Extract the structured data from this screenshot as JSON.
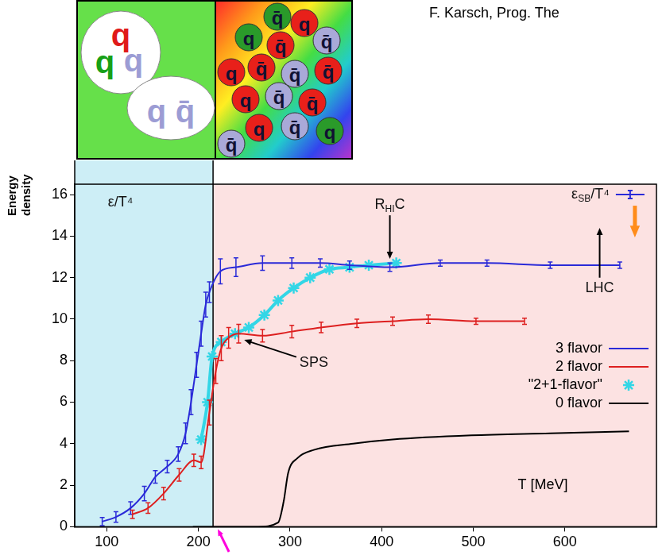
{
  "source": "F. Karsch, Prog. The",
  "inset": {
    "hadrons": [
      [
        {
          "label": "q",
          "color": "#e01a1a"
        },
        {
          "label": "q",
          "color": "#17a017"
        },
        {
          "label": "q",
          "color": "#9c9cd4"
        }
      ],
      [
        {
          "label": "q",
          "color": "#9c9cd4"
        },
        {
          "label": "q̄",
          "color": "#9c9cd4"
        }
      ]
    ],
    "plasma": [
      {
        "label": "q̄",
        "color": "#2a9a2a"
      },
      {
        "label": "q",
        "color": "#e8201a"
      },
      {
        "label": "q",
        "color": "#2a9a2a"
      },
      {
        "label": "q̄",
        "color": "#e8201a"
      },
      {
        "label": "q̄",
        "color": "#a9a9d8"
      },
      {
        "label": "q",
        "color": "#e8201a"
      },
      {
        "label": "q̄",
        "color": "#e8201a"
      },
      {
        "label": "q̄",
        "color": "#a9a9d8"
      },
      {
        "label": "q̄",
        "color": "#e8201a"
      },
      {
        "label": "q",
        "color": "#e8201a"
      },
      {
        "label": "q̄",
        "color": "#a9a9d8"
      },
      {
        "label": "q̄",
        "color": "#e8201a"
      },
      {
        "label": "q",
        "color": "#e8201a"
      },
      {
        "label": "q̄",
        "color": "#a9a9d8"
      },
      {
        "label": "q",
        "color": "#2a9a2a"
      },
      {
        "label": "q̄",
        "color": "#a9a9d8"
      }
    ]
  },
  "chart_data": {
    "type": "line",
    "y_label": "Energy density",
    "x_label": "T [MeV]",
    "xlim": [
      65,
      700
    ],
    "xticks": [
      100,
      200,
      300,
      400,
      500,
      600
    ],
    "ylim": [
      0,
      16.5
    ],
    "yticks": [
      0,
      2,
      4,
      6,
      8,
      10,
      12,
      14,
      16
    ],
    "grid": false,
    "legend": "right",
    "shaded_regions": [
      {
        "from": 65,
        "to": 216,
        "color": "#cdeef6"
      },
      {
        "from": 216,
        "to": 700,
        "color": "#fce2e2"
      }
    ],
    "series": [
      {
        "name": "3 flavor",
        "color": "#2a2ad8",
        "marker": "none",
        "line_style": "solid",
        "x": [
          95,
          110,
          126,
          141,
          153,
          166,
          178,
          186,
          192,
          198,
          203,
          208,
          212,
          224,
          241,
          270,
          302,
          333,
          365,
          409,
          464,
          515,
          584,
          660
        ],
        "values": [
          0.25,
          0.47,
          0.9,
          1.6,
          2.4,
          2.9,
          3.5,
          4.5,
          6.0,
          7.8,
          9.3,
          10.7,
          11.3,
          12.3,
          12.5,
          12.7,
          12.7,
          12.7,
          12.6,
          12.5,
          12.7,
          12.7,
          12.6,
          12.6
        ],
        "errors": [
          0.2,
          0.25,
          0.3,
          0.35,
          0.3,
          0.3,
          0.35,
          0.5,
          0.6,
          0.6,
          0.6,
          0.6,
          0.5,
          0.6,
          0.45,
          0.35,
          0.25,
          0.2,
          0.2,
          0.2,
          0.15,
          0.15,
          0.15,
          0.15
        ]
      },
      {
        "name": "2 flavor",
        "color": "#dd1f1f",
        "marker": "none",
        "line_style": "solid",
        "x": [
          128,
          145,
          162,
          179,
          195,
          203,
          212,
          219,
          225,
          233,
          244,
          270,
          302,
          334,
          373,
          412,
          451,
          503,
          556
        ],
        "values": [
          0.6,
          0.9,
          1.6,
          2.5,
          3.2,
          3.1,
          5.5,
          7.5,
          8.6,
          9.1,
          9.3,
          9.2,
          9.4,
          9.6,
          9.8,
          9.9,
          10.0,
          9.9,
          9.9
        ],
        "errors": [
          0.2,
          0.25,
          0.3,
          0.3,
          0.3,
          0.3,
          0.6,
          0.6,
          0.6,
          0.5,
          0.45,
          0.3,
          0.3,
          0.25,
          0.2,
          0.2,
          0.2,
          0.15,
          0.15
        ]
      },
      {
        "name": "\"2+1-flavor\"",
        "color": "#33d6e6",
        "marker": "star",
        "line_style": "solid",
        "x": [
          203,
          210,
          215,
          225,
          240,
          255,
          272,
          287,
          304,
          322,
          343,
          365,
          386,
          416
        ],
        "values": [
          4.2,
          6.0,
          8.2,
          8.9,
          9.3,
          9.6,
          10.2,
          10.9,
          11.5,
          12.0,
          12.4,
          12.5,
          12.6,
          12.7
        ]
      },
      {
        "name": "0 flavor",
        "color": "#000000",
        "marker": "none",
        "line_style": "solid",
        "x": [
          194,
          265,
          287,
          293,
          298,
          308,
          326,
          369,
          412,
          498,
          584,
          670
        ],
        "values": [
          0,
          0,
          0.2,
          1.2,
          2.6,
          3.3,
          3.7,
          4.0,
          4.2,
          4.4,
          4.5,
          4.6
        ]
      }
    ],
    "annotations": [
      {
        "text": "ε/T⁴",
        "x": 115,
        "y": 15.6
      },
      {
        "text": "RHIC",
        "x": 409,
        "y": 15.5,
        "arrow_to": [
          409,
          12.9
        ]
      },
      {
        "text": "SPS",
        "x": 326,
        "y": 7.9,
        "arrow_to": [
          250,
          9.0
        ]
      },
      {
        "text": "LHC",
        "x": 638,
        "y": 11.5,
        "arrow_to": [
          638,
          14.4
        ]
      },
      {
        "text": "εSB/T⁴",
        "x": 628,
        "y": 16,
        "color": "#2a2ad8",
        "marker": "line"
      }
    ]
  }
}
